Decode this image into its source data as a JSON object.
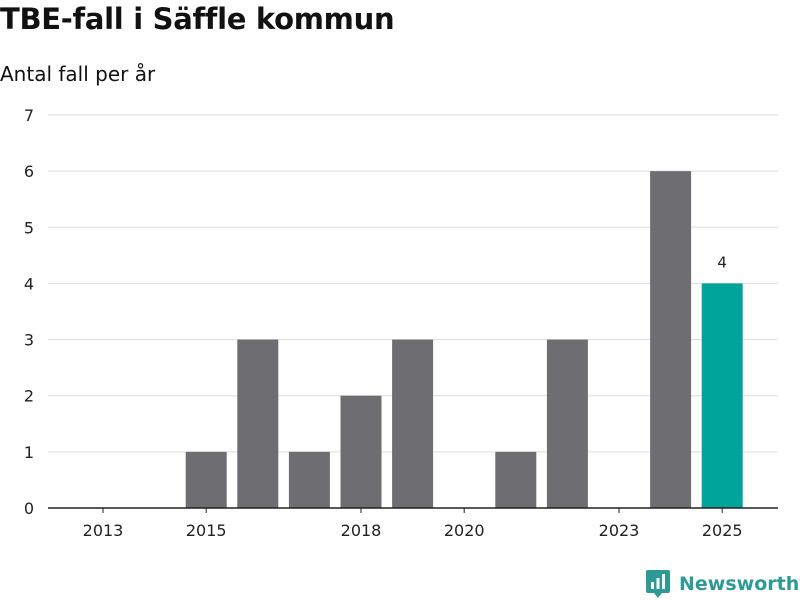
{
  "header": {
    "title": "TBE-fall i Säffle kommun",
    "subtitle": "Antal fall per år"
  },
  "brand": {
    "name": "Newsworthy"
  },
  "colors": {
    "bar": "#6d6d72",
    "highlight": "#00a498",
    "grid": "#dddddd",
    "axis": "#222222",
    "brand": "#2e9a96"
  },
  "chart_data": {
    "type": "bar",
    "title": "TBE-fall i Säffle kommun",
    "subtitle": "Antal fall per år",
    "xlabel": "",
    "ylabel": "",
    "categories": [
      "2013",
      "2014",
      "2015",
      "2016",
      "2017",
      "2018",
      "2019",
      "2020",
      "2021",
      "2022",
      "2023",
      "2024",
      "2025"
    ],
    "values": [
      0,
      0,
      1,
      3,
      1,
      2,
      3,
      0,
      1,
      3,
      0,
      6,
      4
    ],
    "highlight_category": "2025",
    "data_labels": [
      {
        "category": "2025",
        "text": "4"
      }
    ],
    "x_tick_labels": [
      "2013",
      "2015",
      "2018",
      "2020",
      "2023",
      "2025"
    ],
    "y_ticks": [
      0,
      1,
      2,
      3,
      4,
      5,
      6,
      7
    ],
    "ylim": [
      0,
      7
    ],
    "grid": true,
    "legend": "none"
  }
}
